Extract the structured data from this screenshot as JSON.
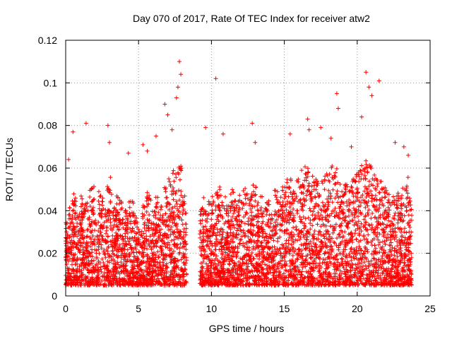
{
  "chart_data": {
    "type": "scatter",
    "title": "Day 070 of 2017, Rate Of TEC Index for receiver atw2",
    "xlabel": "GPS time / hours",
    "ylabel": "ROTI / TECUs",
    "xlim": [
      0,
      25
    ],
    "ylim": [
      0,
      0.12
    ],
    "x_ticks": [
      0,
      5,
      10,
      15,
      20,
      25
    ],
    "x_tick_labels": [
      "0",
      "5",
      "10",
      "15",
      "20",
      "25"
    ],
    "y_ticks": [
      0,
      0.02,
      0.04,
      0.06,
      0.08,
      0.1,
      0.12
    ],
    "y_tick_labels": [
      "0",
      "0.02",
      "0.04",
      "0.06",
      "0.08",
      "0.1",
      "0.12"
    ],
    "grid": true,
    "marker": "plus",
    "color": "#ff0000",
    "data_gaps_hours": [
      [
        8.3,
        9.2
      ]
    ],
    "series": [
      {
        "x": [
          0.0,
          0.3,
          0.6,
          0.9,
          1.2,
          1.5,
          1.8,
          2.1,
          2.4,
          2.7,
          3.0,
          3.3,
          3.6,
          3.9,
          4.2,
          4.5,
          4.8,
          5.1,
          5.4,
          5.7,
          6.0,
          6.3,
          6.6,
          6.9,
          7.2,
          7.5,
          7.8,
          8.1,
          9.3,
          9.6,
          9.9,
          10.2,
          10.5,
          10.8,
          11.1,
          11.4,
          11.7,
          12.0,
          12.3,
          12.6,
          12.9,
          13.2,
          13.5,
          13.8,
          14.1,
          14.4,
          14.7,
          15.0,
          15.3,
          15.6,
          15.9,
          16.2,
          16.5,
          16.8,
          17.1,
          17.4,
          17.7,
          18.0,
          18.3,
          18.6,
          18.9,
          19.2,
          19.5,
          19.8,
          20.1,
          20.4,
          20.7,
          21.0,
          21.3,
          21.6,
          21.9,
          22.2,
          22.5,
          22.8,
          23.1,
          23.4,
          23.7,
          0.2,
          0.5,
          1.4,
          2.9,
          3.0,
          4.3,
          5.3,
          5.6,
          6.2,
          6.8,
          7.0,
          7.3,
          7.6,
          7.7,
          7.8,
          7.9,
          9.6,
          10.3,
          10.8,
          12.8,
          13.0,
          15.4,
          16.6,
          16.7,
          17.5,
          18.2,
          18.6,
          18.7,
          19.6,
          20.3,
          20.6,
          20.8,
          21.0,
          21.5,
          22.6,
          23.2,
          23.5
        ],
        "y": [
          0.018,
          0.025,
          0.032,
          0.022,
          0.03,
          0.028,
          0.035,
          0.02,
          0.033,
          0.026,
          0.04,
          0.025,
          0.031,
          0.028,
          0.024,
          0.03,
          0.022,
          0.015,
          0.027,
          0.032,
          0.023,
          0.03,
          0.026,
          0.035,
          0.038,
          0.042,
          0.045,
          0.03,
          0.025,
          0.03,
          0.028,
          0.032,
          0.035,
          0.03,
          0.026,
          0.033,
          0.029,
          0.031,
          0.034,
          0.03,
          0.036,
          0.032,
          0.03,
          0.028,
          0.027,
          0.033,
          0.031,
          0.035,
          0.038,
          0.036,
          0.04,
          0.042,
          0.045,
          0.04,
          0.038,
          0.036,
          0.04,
          0.042,
          0.044,
          0.048,
          0.04,
          0.037,
          0.035,
          0.038,
          0.042,
          0.045,
          0.05,
          0.046,
          0.04,
          0.038,
          0.036,
          0.033,
          0.03,
          0.032,
          0.035,
          0.04,
          0.03,
          0.064,
          0.077,
          0.081,
          0.08,
          0.072,
          0.067,
          0.071,
          0.068,
          0.075,
          0.09,
          0.085,
          0.078,
          0.093,
          0.098,
          0.11,
          0.104,
          0.079,
          0.102,
          0.076,
          0.081,
          0.072,
          0.076,
          0.083,
          0.078,
          0.079,
          0.074,
          0.095,
          0.088,
          0.07,
          0.084,
          0.105,
          0.098,
          0.094,
          0.101,
          0.072,
          0.07,
          0.066
        ]
      }
    ]
  }
}
